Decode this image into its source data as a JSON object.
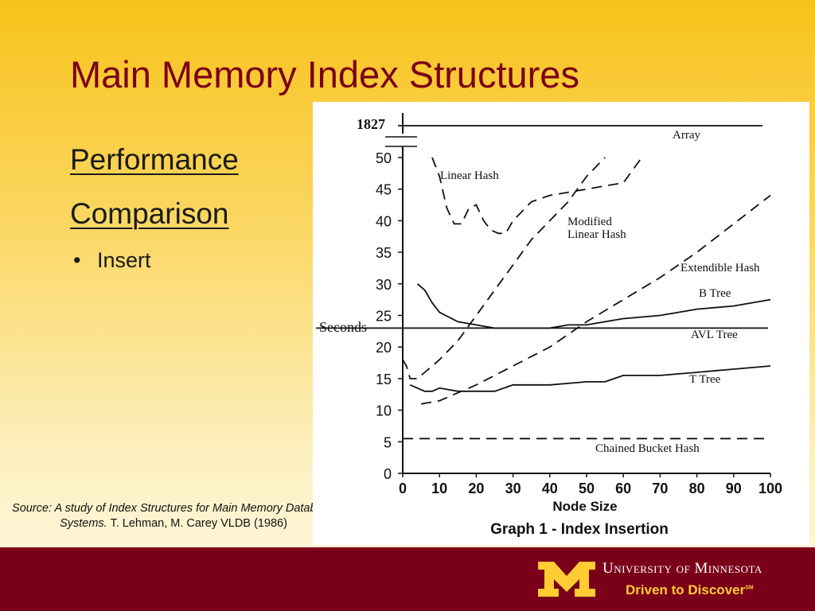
{
  "slide": {
    "title": "Main Memory Index Structures",
    "heading_line1": "Performance",
    "heading_line2": "Comparison",
    "bullet": "Insert",
    "source_italic": "Source: A study of Index Structures for Main Memory Database Systems.",
    "source_plain": "T. Lehman, M. Carey VLDB (1986)"
  },
  "footer": {
    "university": "University of Minnesota",
    "tagline": "Driven to Discover",
    "service_mark": "SM",
    "colors": {
      "maroon": "#7a0019",
      "gold": "#ffcc33"
    },
    "logo_icon": "block-m-logo-icon"
  },
  "chart_data": {
    "type": "line",
    "title": "Graph 1 - Index Insertion",
    "xlabel": "Node Size",
    "ylabel": "Seconds",
    "xlim": [
      0,
      100
    ],
    "ylim": [
      0,
      50
    ],
    "xticks": [
      0,
      10,
      20,
      30,
      40,
      50,
      60,
      70,
      80,
      90,
      100
    ],
    "yticks": [
      0,
      5,
      10,
      15,
      20,
      25,
      30,
      35,
      40,
      45,
      50
    ],
    "y_break_value": "1827",
    "grid": false,
    "series": [
      {
        "name": "Array",
        "style": "solid",
        "value": 1827
      },
      {
        "name": "Linear Hash",
        "style": "dashed",
        "x": [
          8,
          10,
          12,
          14,
          16,
          18,
          20,
          22,
          24,
          26,
          28,
          30,
          35,
          40,
          45,
          50,
          55,
          60,
          65
        ],
        "y": [
          50,
          47,
          42,
          39.5,
          39.5,
          42,
          42.5,
          40,
          38.5,
          38,
          38,
          40,
          43,
          44,
          44.5,
          45,
          45.5,
          46,
          50
        ]
      },
      {
        "name": "Modified Linear Hash",
        "style": "dashed",
        "x": [
          0,
          1,
          2,
          4,
          6,
          10,
          15,
          20,
          25,
          30,
          35,
          40,
          45,
          50,
          55
        ],
        "y": [
          18,
          17,
          15,
          15,
          16,
          18,
          21,
          25,
          29,
          33,
          37,
          40,
          43,
          47,
          50
        ]
      },
      {
        "name": "Extendible Hash",
        "style": "dashed",
        "x": [
          5,
          10,
          20,
          30,
          40,
          50,
          60,
          70,
          80,
          90,
          100
        ],
        "y": [
          11,
          11.5,
          14,
          17,
          20,
          24,
          27.5,
          31,
          35,
          39.5,
          44
        ]
      },
      {
        "name": "B Tree",
        "style": "solid",
        "x": [
          4,
          6,
          8,
          10,
          15,
          20,
          25,
          30,
          40,
          45,
          50,
          55,
          60,
          70,
          80,
          90,
          100
        ],
        "y": [
          30,
          29,
          27,
          25.5,
          24,
          23.5,
          23,
          23,
          23,
          23.5,
          23.5,
          24,
          24.5,
          25,
          26,
          26.5,
          27.5
        ]
      },
      {
        "name": "AVL Tree",
        "style": "solid",
        "value": 23
      },
      {
        "name": "T Tree",
        "style": "solid",
        "x": [
          2,
          4,
          6,
          8,
          10,
          15,
          20,
          25,
          30,
          40,
          50,
          55,
          60,
          70,
          80,
          90,
          100
        ],
        "y": [
          14,
          13.5,
          13,
          13,
          13.5,
          13,
          13,
          13,
          14,
          14,
          14.5,
          14.5,
          15.5,
          15.5,
          16,
          16.5,
          17
        ]
      },
      {
        "name": "Chained Bucket Hash",
        "style": "dashed",
        "value": 5.5
      }
    ]
  }
}
